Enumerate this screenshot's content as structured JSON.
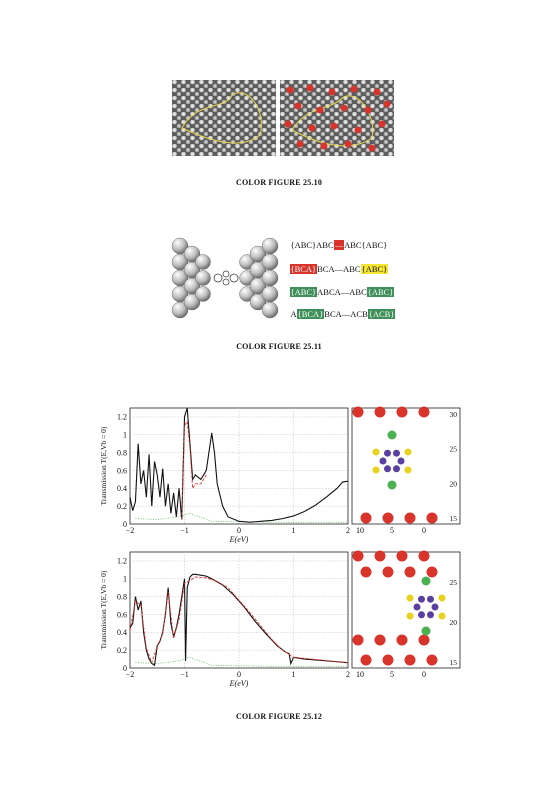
{
  "figures": [
    {
      "caption": "COLOR FIGURE 25.10"
    },
    {
      "caption": "COLOR FIGURE 25.11",
      "sequences": [
        [
          {
            "t": "{ABC}ABC"
          },
          {
            "t": "—",
            "hl": "red"
          },
          {
            "t": "ABC{ABC}"
          }
        ],
        [
          {
            "t": "{BCA}",
            "hl": "red"
          },
          {
            "t": "BCA—ABC"
          },
          {
            "t": "{ABC}",
            "hl": "yellow"
          }
        ],
        [
          {
            "t": "{ABC}",
            "hl": "green"
          },
          {
            "t": "ABCA—ABC"
          },
          {
            "t": "{ABC}",
            "hl": "green"
          }
        ],
        [
          {
            "t": "A"
          },
          {
            "t": "{BCA}",
            "hl": "green"
          },
          {
            "t": "BCA—ACB"
          },
          {
            "t": "{ACB}",
            "hl": "green"
          }
        ]
      ]
    },
    {
      "caption": "COLOR FIGURE 25.12"
    }
  ],
  "colors": {
    "red": "#d9342b",
    "green": "#3f8f5a",
    "yellow": "#f4e532",
    "purple": "#5a3fa0",
    "atom_yellow": "#e8d21a",
    "atom_green": "#4caf50"
  },
  "chart_data": [
    {
      "type": "line",
      "ylabel": "Transmission T(E,V_b = 0)",
      "xlabel": "E(eV)",
      "xlim": [
        -2,
        2
      ],
      "ylim": [
        0,
        1.3
      ],
      "xticks": [
        "−2",
        "−1",
        "0",
        "1",
        "2"
      ],
      "yticks": [
        "0",
        "0.2",
        "0.4",
        "0.6",
        "0.8",
        "1",
        "1.2"
      ],
      "grid": true,
      "series": [
        {
          "style": "solid-black",
          "x": [
            -2,
            -1.95,
            -1.9,
            -1.85,
            -1.8,
            -1.75,
            -1.7,
            -1.65,
            -1.6,
            -1.55,
            -1.5,
            -1.45,
            -1.4,
            -1.35,
            -1.3,
            -1.25,
            -1.2,
            -1.15,
            -1.1,
            -1.05,
            -1.0,
            -0.95,
            -0.9,
            -0.85,
            -0.8,
            -0.7,
            -0.6,
            -0.5,
            -0.45,
            -0.4,
            -0.3,
            -0.2,
            0,
            0.2,
            0.4,
            0.6,
            0.8,
            1.0,
            1.2,
            1.4,
            1.6,
            1.8,
            1.9,
            2.0
          ],
          "y": [
            0.3,
            0.15,
            0.25,
            0.9,
            0.45,
            0.6,
            0.3,
            0.78,
            0.2,
            0.7,
            0.55,
            0.3,
            0.62,
            0.2,
            0.45,
            0.12,
            0.35,
            0.08,
            0.4,
            0.05,
            1.2,
            1.3,
            0.9,
            0.5,
            0.55,
            0.5,
            0.6,
            1.02,
            0.8,
            0.45,
            0.2,
            0.08,
            0.03,
            0.02,
            0.03,
            0.04,
            0.06,
            0.09,
            0.14,
            0.21,
            0.3,
            0.4,
            0.47,
            0.48
          ]
        },
        {
          "style": "dashed-red",
          "x": [
            -1.05,
            -1.0,
            -0.95,
            -0.9,
            -0.85,
            -0.8,
            -0.7,
            -0.6
          ],
          "y": [
            0.05,
            1.1,
            1.15,
            0.85,
            0.4,
            0.45,
            0.45,
            0.55
          ]
        }
      ],
      "inset": {
        "yticks": [
          "15",
          "20",
          "25",
          "30"
        ],
        "xticks": [
          "10",
          "5",
          "0"
        ]
      }
    },
    {
      "type": "line",
      "ylabel": "Transmission T(E,V_b = 0)",
      "xlabel": "E(eV)",
      "xlim": [
        -2,
        2
      ],
      "ylim": [
        0,
        1.3
      ],
      "xticks": [
        "−2",
        "−1",
        "0",
        "1",
        "2"
      ],
      "yticks": [
        "0",
        "0.2",
        "0.4",
        "0.6",
        "0.8",
        "1",
        "1.2"
      ],
      "grid": true,
      "series": [
        {
          "style": "solid-black",
          "x": [
            -2,
            -1.95,
            -1.9,
            -1.85,
            -1.8,
            -1.75,
            -1.7,
            -1.65,
            -1.6,
            -1.55,
            -1.5,
            -1.45,
            -1.4,
            -1.35,
            -1.3,
            -1.25,
            -1.2,
            -1.15,
            -1.1,
            -1.05,
            -1.0,
            -0.98,
            -0.95,
            -0.9,
            -0.85,
            -0.8,
            -0.7,
            -0.6,
            -0.5,
            -0.3,
            -0.1,
            0.1,
            0.3,
            0.5,
            0.7,
            0.85,
            0.92,
            0.95,
            1.0,
            1.2,
            1.4,
            1.6,
            1.8,
            2.0
          ],
          "y": [
            0.45,
            0.5,
            0.8,
            0.65,
            0.75,
            0.4,
            0.2,
            0.1,
            0.05,
            0.03,
            0.25,
            0.3,
            0.4,
            0.6,
            0.9,
            0.5,
            0.35,
            0.45,
            0.6,
            0.8,
            1.0,
            0.08,
            0.9,
            1.02,
            1.05,
            1.05,
            1.04,
            1.03,
            1.0,
            0.93,
            0.82,
            0.68,
            0.52,
            0.38,
            0.25,
            0.18,
            0.16,
            0.05,
            0.12,
            0.1,
            0.09,
            0.08,
            0.07,
            0.06
          ]
        },
        {
          "style": "dashed-red",
          "x": [
            -2,
            -1.9,
            -1.8,
            -1.7,
            -1.6,
            -1.5,
            -1.4,
            -1.3,
            -1.2,
            -1.1,
            -1.0,
            -0.9,
            -0.8,
            -0.6,
            -0.4,
            -0.2,
            0,
            0.2,
            0.4,
            0.6,
            0.8,
            1.0,
            1.5,
            2.0
          ],
          "y": [
            0.42,
            0.75,
            0.7,
            0.22,
            0.06,
            0.24,
            0.38,
            0.85,
            0.33,
            0.55,
            0.95,
            0.98,
            1.02,
            1.01,
            0.97,
            0.9,
            0.76,
            0.62,
            0.47,
            0.32,
            0.2,
            0.12,
            0.09,
            0.06
          ]
        }
      ],
      "inset": {
        "yticks": [
          "15",
          "20",
          "25"
        ],
        "xticks": [
          "10",
          "5",
          "0"
        ]
      }
    }
  ]
}
